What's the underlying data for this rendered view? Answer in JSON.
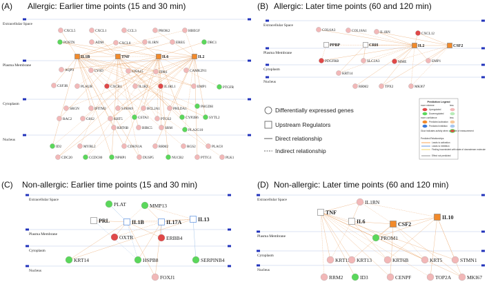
{
  "colors": {
    "up_strong": "#e04848",
    "up_light": "#f2b8b8",
    "down_strong": "#5bd75b",
    "down_light": "#b8ecb8",
    "regulator": "#f28a2a",
    "edge": "#e8a060",
    "line": "#b8c8e8",
    "mark": "#2233bb"
  },
  "layers": [
    "Extracellular Space",
    "Plasma Membrane",
    "Cytoplasm",
    "Nucleus"
  ],
  "panels": [
    {
      "tag": "(A)",
      "title": "Allergic: Earlier time points (15 and 30 min)"
    },
    {
      "tag": "(B)",
      "title": "Allergic: Later time points (60 and 120 min)"
    },
    {
      "tag": "(C)",
      "title": "Non-allergic: Earlier time points (15 and 30 min)"
    },
    {
      "tag": "(D)",
      "title": "Non-allergic: Later time points (60 and 120 min)"
    }
  ],
  "legend": {
    "items": [
      "Differentially expressed genes",
      "Upstream Regulators",
      "Direct relationship",
      "Indirect relationship"
    ],
    "box_title": "Prediction Legend",
    "more_extreme": "more extreme",
    "less": "less",
    "upregulated": "Upregulated",
    "downregulated": "Downregulated",
    "more_confidence": "more confidence",
    "pred_activation": "Predicted activation",
    "pred_inhibition": "Predicted inhibition",
    "glow": "Glow indicates activity when opposite of measurement",
    "pred_rel": "Predicted Relationships",
    "leads_act": "Leads to activation",
    "leads_inh": "Leads to inhibition",
    "finding": "Finding inconsistent with state of downstream molecule",
    "effect": "Effect not predicted"
  },
  "nodes": {
    "A": [
      {
        "t": "CXCL5",
        "k": "l"
      },
      {
        "t": "CXCL1",
        "k": "l"
      },
      {
        "t": "CCL3",
        "k": "l"
      },
      {
        "t": "PROK2",
        "k": "l"
      },
      {
        "t": "HBEGF",
        "k": "l"
      },
      {
        "t": "POSTN",
        "k": "d"
      },
      {
        "t": "ADM",
        "k": "l"
      },
      {
        "t": "CXCL8",
        "k": "l"
      },
      {
        "t": "IL1RN",
        "k": "l"
      },
      {
        "t": "EREG",
        "k": "l"
      },
      {
        "t": "DRC1",
        "k": "d"
      },
      {
        "t": "IL1B",
        "k": "r"
      },
      {
        "t": "TNF",
        "k": "r"
      },
      {
        "t": "IL6",
        "k": "r"
      },
      {
        "t": "IL2",
        "k": "r"
      },
      {
        "t": "AQP9",
        "k": "l"
      },
      {
        "t": "LY6D",
        "k": "l"
      },
      {
        "t": "GNA15",
        "k": "l"
      },
      {
        "t": "FPR1",
        "k": "l"
      },
      {
        "t": "CAMK2N1",
        "k": "l"
      },
      {
        "t": "CSF3R",
        "k": "l"
      },
      {
        "t": "PLAUR",
        "k": "l"
      },
      {
        "t": "CXCR1",
        "k": "u"
      },
      {
        "t": "IL1R2",
        "k": "l"
      },
      {
        "t": "IL1RL1",
        "k": "u"
      },
      {
        "t": "EMP1",
        "k": "l"
      },
      {
        "t": "PTGFR",
        "k": "d"
      },
      {
        "t": "SRGN",
        "k": "l"
      },
      {
        "t": "IFITM2",
        "k": "l"
      },
      {
        "t": "S100A9",
        "k": "l"
      },
      {
        "t": "BCL2A1",
        "k": "l"
      },
      {
        "t": "PHLDA1",
        "k": "l"
      },
      {
        "t": "PHGDH",
        "k": "d"
      },
      {
        "t": "RAC2",
        "k": "l"
      },
      {
        "t": "G0S2",
        "k": "l"
      },
      {
        "t": "KRT5",
        "k": "l"
      },
      {
        "t": "GSTA1",
        "k": "d"
      },
      {
        "t": "PTGS2",
        "k": "l"
      },
      {
        "t": "CYP2B6",
        "k": "d"
      },
      {
        "t": "SYTL2",
        "k": "d"
      },
      {
        "t": "KRT6B",
        "k": "l"
      },
      {
        "t": "BIRC5",
        "k": "l"
      },
      {
        "t": "SRM",
        "k": "l"
      },
      {
        "t": "PLA2G10",
        "k": "d"
      },
      {
        "t": "ID2",
        "k": "d"
      },
      {
        "t": "MYBL2",
        "k": "l"
      },
      {
        "t": "CDKN1A",
        "k": "l"
      },
      {
        "t": "RRM2",
        "k": "l"
      },
      {
        "t": "RGS2",
        "k": "l"
      },
      {
        "t": "PLAC8",
        "k": "l"
      },
      {
        "t": "CDC20",
        "k": "l"
      },
      {
        "t": "CCDC80",
        "k": "d"
      },
      {
        "t": "NPHP1",
        "k": "d"
      },
      {
        "t": "DUSP5",
        "k": "l"
      },
      {
        "t": "NUCB2",
        "k": "d"
      },
      {
        "t": "PTTG1",
        "k": "l"
      },
      {
        "t": "PLK1",
        "k": "l"
      }
    ],
    "B": [
      {
        "t": "COL6A3",
        "k": "l"
      },
      {
        "t": "COL18A1",
        "k": "l"
      },
      {
        "t": "IL1RN",
        "k": "l"
      },
      {
        "t": "CXCL12",
        "k": "u"
      },
      {
        "t": "PPBP",
        "k": "n"
      },
      {
        "t": "CRH",
        "k": "n"
      },
      {
        "t": "IL2",
        "k": "r"
      },
      {
        "t": "CSF2",
        "k": "r"
      },
      {
        "t": "PDGFRB",
        "k": "u"
      },
      {
        "t": "SLC2A3",
        "k": "l"
      },
      {
        "t": "MME",
        "k": "u"
      },
      {
        "t": "EMP1",
        "k": "l"
      },
      {
        "t": "KRT14",
        "k": "l"
      },
      {
        "t": "RRM2",
        "k": "l"
      },
      {
        "t": "TPX2",
        "k": "l"
      },
      {
        "t": "MKI67",
        "k": "l"
      }
    ],
    "C": [
      {
        "t": "PLAT",
        "k": "d"
      },
      {
        "t": "MMP13",
        "k": "d"
      },
      {
        "t": "PRL",
        "k": "n"
      },
      {
        "t": "IL1B",
        "k": "b"
      },
      {
        "t": "IL17A",
        "k": "b"
      },
      {
        "t": "IL13",
        "k": "b"
      },
      {
        "t": "OXTR",
        "k": "u"
      },
      {
        "t": "ERBB4",
        "k": "u"
      },
      {
        "t": "KRT14",
        "k": "d"
      },
      {
        "t": "HSPB8",
        "k": "d"
      },
      {
        "t": "SERPINB4",
        "k": "d"
      },
      {
        "t": "FOXJ1",
        "k": "l"
      }
    ],
    "D": [
      {
        "t": "IL1RN",
        "k": "l"
      },
      {
        "t": "TNF",
        "k": "n"
      },
      {
        "t": "IL6",
        "k": "n"
      },
      {
        "t": "CSF2",
        "k": "r"
      },
      {
        "t": "IL10",
        "k": "r"
      },
      {
        "t": "PROM1",
        "k": "d"
      },
      {
        "t": "KRT15",
        "k": "l"
      },
      {
        "t": "KRT13",
        "k": "l"
      },
      {
        "t": "KRT6B",
        "k": "l"
      },
      {
        "t": "KRT5",
        "k": "l"
      },
      {
        "t": "STMN1",
        "k": "l"
      },
      {
        "t": "RRM2",
        "k": "l"
      },
      {
        "t": "ID3",
        "k": "d"
      },
      {
        "t": "CENPF",
        "k": "l"
      },
      {
        "t": "TOP2A",
        "k": "l"
      },
      {
        "t": "MKI67",
        "k": "l"
      }
    ]
  }
}
